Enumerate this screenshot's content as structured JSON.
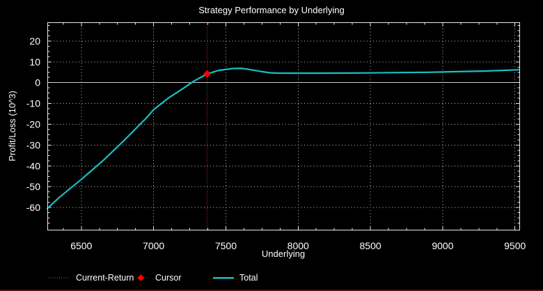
{
  "chart_data": {
    "type": "line",
    "title": "Strategy Performance by Underlying",
    "xlabel": "Underlying",
    "ylabel": "Profit/Loss (10^3)",
    "xlim": [
      6265,
      9535
    ],
    "ylim": [
      -71,
      29
    ],
    "x_major_ticks": [
      6500,
      7000,
      7500,
      8000,
      8500,
      9000,
      9500
    ],
    "x_minor_step": 125,
    "y_major_ticks": [
      20,
      10,
      0,
      -10,
      -20,
      -30,
      -40,
      -50,
      -60
    ],
    "y_minor_step": 2.5,
    "grid": {
      "style": "dotted",
      "on": true,
      "color": "#c8c8c8",
      "zero_line_color": "#cfcfcf"
    },
    "frame_color": "#e8e8e8",
    "text_color": "#ffffff",
    "background_color": "#000000",
    "series": [
      {
        "name": "Total",
        "color": "#19c0c4",
        "points": [
          [
            6265,
            -60.5
          ],
          [
            6350,
            -55
          ],
          [
            6500,
            -46.5
          ],
          [
            6650,
            -37.5
          ],
          [
            6800,
            -27.5
          ],
          [
            6950,
            -17
          ],
          [
            7000,
            -13
          ],
          [
            7100,
            -7.5
          ],
          [
            7200,
            -3
          ],
          [
            7280,
            0.8
          ],
          [
            7370,
            4.2
          ],
          [
            7450,
            5.9
          ],
          [
            7550,
            6.8
          ],
          [
            7600,
            6.9
          ],
          [
            7650,
            6.5
          ],
          [
            7750,
            5.3
          ],
          [
            7800,
            4.8
          ],
          [
            7850,
            4.6
          ],
          [
            7950,
            4.55
          ],
          [
            8100,
            4.55
          ],
          [
            8300,
            4.6
          ],
          [
            8500,
            4.7
          ],
          [
            8700,
            4.85
          ],
          [
            8900,
            5.0
          ],
          [
            9100,
            5.3
          ],
          [
            9300,
            5.6
          ],
          [
            9530,
            6.2
          ]
        ]
      }
    ],
    "cursor": {
      "x": 7370,
      "y": 4.2,
      "color": "#ff0000",
      "marker": "diamond"
    },
    "current_return": {
      "x": 7370,
      "color": "#d42a2a",
      "style": "dotted-vertical-line"
    },
    "legend": {
      "position": "bottom",
      "entries": [
        {
          "label": "Current-Return",
          "swatch": "dotted-line",
          "color": "#c05050"
        },
        {
          "label": "Cursor",
          "swatch": "diamond-on-dotted-line",
          "color": "#ff0000"
        },
        {
          "label": "Total",
          "swatch": "solid-line",
          "color": "#19c0c4"
        }
      ]
    }
  },
  "window": {
    "bottom_border_color": "#571010"
  }
}
